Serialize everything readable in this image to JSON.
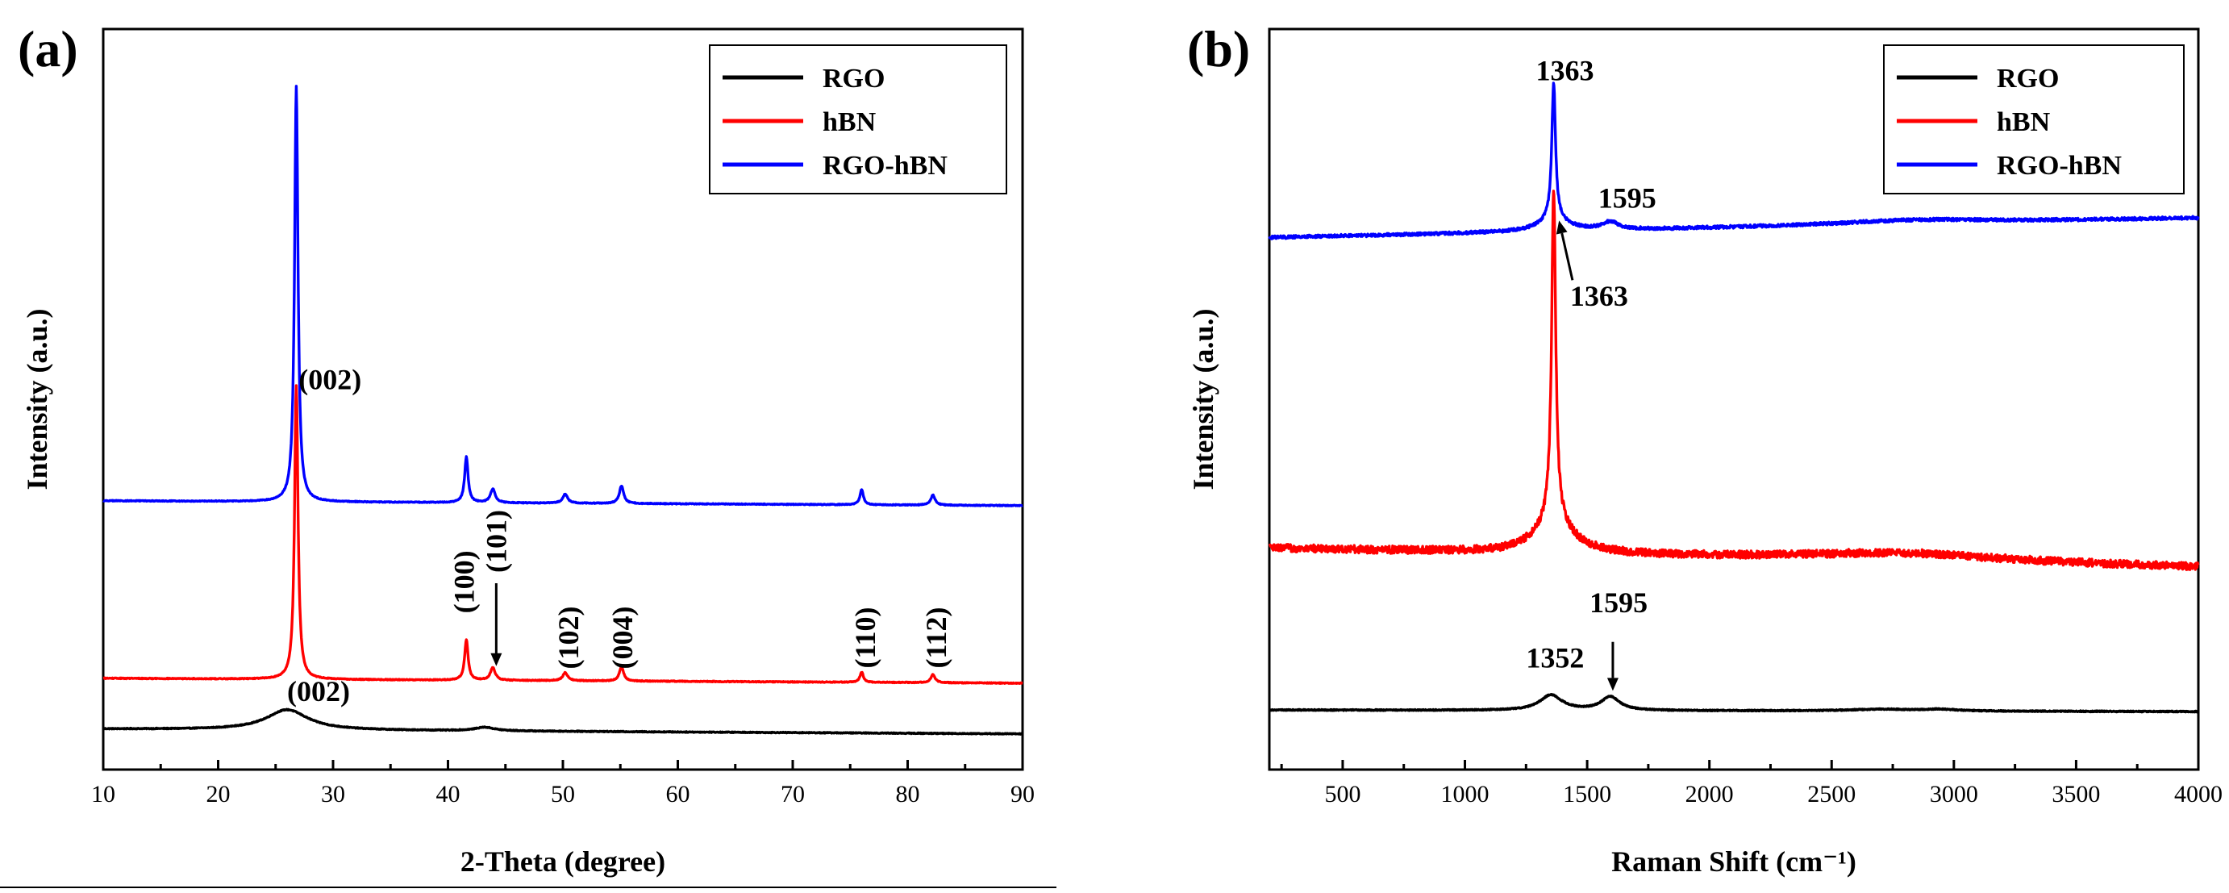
{
  "chart_data": [
    {
      "type": "line",
      "panel_label": "(a)",
      "title": "",
      "xlabel": "2-Theta (degree)",
      "ylabel": "Intensity (a.u.)",
      "xlim": [
        10,
        90
      ],
      "xticks": [
        10,
        20,
        30,
        40,
        50,
        60,
        70,
        80,
        90
      ],
      "grid": false,
      "legend_position": "top-right",
      "series": [
        {
          "name": "RGO",
          "color": "#000000",
          "baseline": 2,
          "noise": 0.08,
          "peaks": [
            [
              26,
              4,
              2.2
            ],
            [
              43.2,
              0.7,
              1.0
            ]
          ],
          "slope": -0.012
        },
        {
          "name": "hBN",
          "color": "#ff0000",
          "baseline": 12,
          "noise": 0.08,
          "peaks": [
            [
              26.8,
              58,
              0.18
            ],
            [
              41.6,
              8,
              0.18
            ],
            [
              43.9,
              2.5,
              0.25
            ],
            [
              50.2,
              1.6,
              0.25
            ],
            [
              55.1,
              2.8,
              0.22
            ],
            [
              76.0,
              2,
              0.18
            ],
            [
              82.2,
              1.6,
              0.22
            ]
          ],
          "slope": -0.012
        },
        {
          "name": "RGO-hBN",
          "color": "#0000ff",
          "baseline": 47,
          "noise": 0.08,
          "peaks": [
            [
              26.8,
              82,
              0.18
            ],
            [
              41.6,
              9,
              0.18
            ],
            [
              43.9,
              2.7,
              0.25
            ],
            [
              50.2,
              1.8,
              0.25
            ],
            [
              55.1,
              3.5,
              0.22
            ],
            [
              76.0,
              3,
              0.18
            ],
            [
              82.2,
              2,
              0.22
            ]
          ],
          "slope": -0.012
        }
      ],
      "annotations": [
        {
          "text": "(002)",
          "x": 27.0,
          "y": 69,
          "orient": "h"
        },
        {
          "text": "(002)",
          "x": 26.0,
          "y": 7.5,
          "orient": "h"
        },
        {
          "text": "(100)",
          "x": 41.4,
          "y": 31,
          "orient": "v"
        },
        {
          "text": "(101)",
          "x": 44.2,
          "y": 39,
          "orient": "v",
          "arrow_to_y": 14.4
        },
        {
          "text": "(102)",
          "x": 50.5,
          "y": 20,
          "orient": "v"
        },
        {
          "text": "(004)",
          "x": 55.2,
          "y": 20,
          "orient": "v"
        },
        {
          "text": "(110)",
          "x": 76.3,
          "y": 20,
          "orient": "v"
        },
        {
          "text": "(112)",
          "x": 82.5,
          "y": 20,
          "orient": "v"
        }
      ],
      "ylim": [
        -6,
        140
      ]
    },
    {
      "type": "line",
      "panel_label": "(b)",
      "title": "",
      "xlabel": "Raman Shift (cm⁻¹)",
      "ylabel": "Intensity (a.u.)",
      "xlim": [
        200,
        4000
      ],
      "xticks": [
        500,
        1000,
        1500,
        2000,
        2500,
        3000,
        3500,
        4000
      ],
      "grid": false,
      "legend_position": "top-right",
      "series": [
        {
          "name": "RGO",
          "color": "#000000",
          "baseline": 2,
          "noise": 0.12,
          "peaks": [
            [
              1352,
              3.6,
              55
            ],
            [
              1595,
              3.2,
              45
            ],
            [
              2700,
              0.4,
              150
            ],
            [
              2940,
              0.4,
              80
            ]
          ],
          "slope": -0.0001
        },
        {
          "name": "hBN",
          "color": "#ff0000",
          "baseline": 40,
          "noise": 0.9,
          "peaks": [
            [
              1363,
              78,
              10
            ],
            [
              1363,
              8,
              90
            ],
            [
              2800,
              2,
              500
            ]
          ],
          "slope": -0.0012
        },
        {
          "name": "RGO-hBN",
          "color": "#0000ff",
          "baseline": 113,
          "noise": 0.35,
          "peaks": [
            [
              1363,
              32,
              9
            ],
            [
              1363,
              3,
              70
            ],
            [
              1595,
              1.8,
              40
            ],
            [
              2850,
              1.0,
              400
            ]
          ],
          "slope": 0.0012
        }
      ],
      "annotations": [
        {
          "text": "1363",
          "x": 1290,
          "y": 150,
          "orient": "h"
        },
        {
          "text": "1595",
          "x": 1545,
          "y": 120,
          "orient": "h"
        },
        {
          "text": "1363",
          "x": 1430,
          "y": 97,
          "orient": "h",
          "arrow_from": [
            1440,
            103
          ],
          "arrow_to": [
            1385,
            117
          ]
        },
        {
          "text": "1352",
          "x": 1250,
          "y": 12,
          "orient": "h"
        },
        {
          "text": "1595",
          "x": 1510,
          "y": 25,
          "orient": "h",
          "arrow_from": [
            1605,
            18
          ],
          "arrow_to": [
            1605,
            6.5
          ]
        }
      ],
      "ylim": [
        -12,
        162
      ]
    }
  ]
}
